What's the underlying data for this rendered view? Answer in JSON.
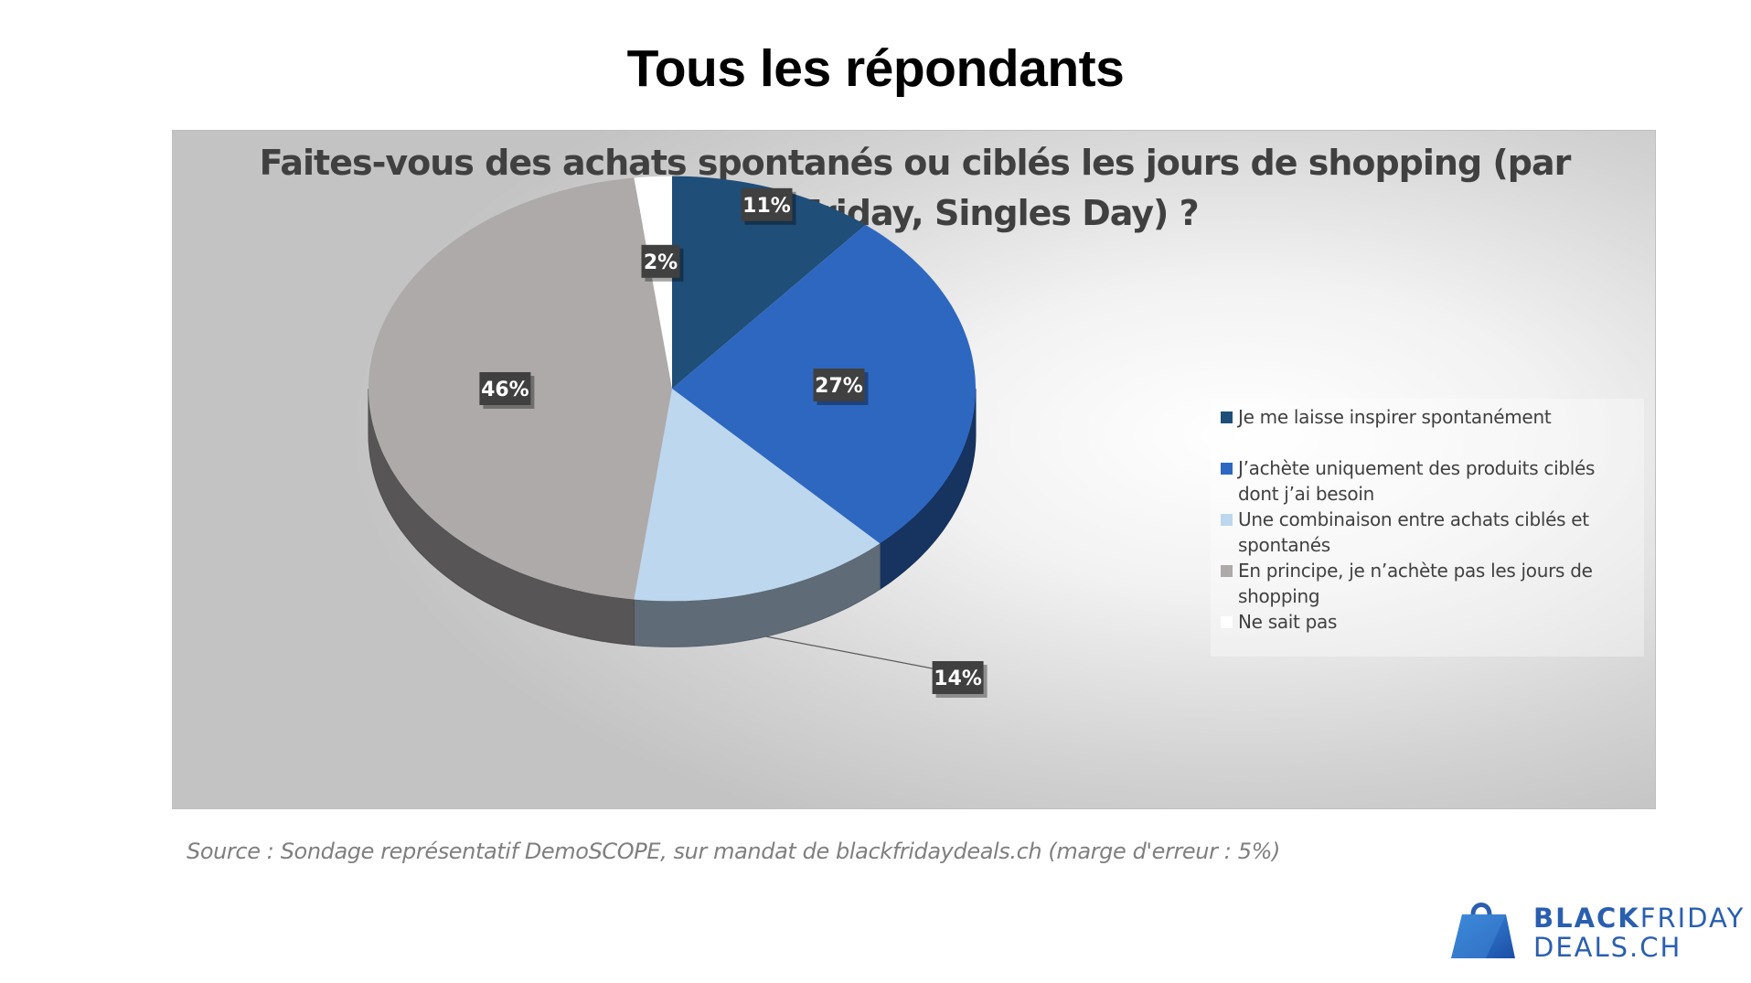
{
  "page": {
    "title": "Tous les répondants"
  },
  "chart_data": {
    "type": "pie",
    "title_lines": [
      "Faites-vous des achats spontanés ou ciblés les jours de shopping (par",
      "ex Black Friday, Singles Day) ?"
    ],
    "slices": [
      {
        "label": "Je me laisse inspirer spontanément",
        "value": 11,
        "display": "11%",
        "color": "#1f4e79"
      },
      {
        "label": "J’achète uniquement des produits ciblés dont j’ai besoin",
        "value": 27,
        "display": "27%",
        "color": "#2e67c0"
      },
      {
        "label": "Une combinaison entre achats ciblés et spontanés",
        "value": 14,
        "display": "14%",
        "color": "#bdd7ee"
      },
      {
        "label": "En principe, je n’achète pas les jours de shopping",
        "value": 46,
        "display": "46%",
        "color": "#aeaaaa"
      },
      {
        "label": "Ne sait pas",
        "value": 2,
        "display": "2%",
        "color": "#ffffff"
      }
    ],
    "legend_position": "right",
    "legend_lines": [
      [
        "Je me laisse inspirer spontanément"
      ],
      [
        "J’achète uniquement des produits ciblés",
        "dont j’ai besoin"
      ],
      [
        "Une combinaison entre achats ciblés et",
        "spontanés"
      ],
      [
        "En principe, je n’achète pas les jours de",
        "shopping"
      ],
      [
        "Ne sait pas"
      ]
    ]
  },
  "footer": {
    "source": "Source : Sondage représentatif DemoSCOPE, sur mandat de blackfridaydeals.ch (marge d'erreur : 5%)"
  },
  "brand": {
    "line1_bold": "BLACK",
    "line1_light": "FRIDAY",
    "line2": "DEALS.CH",
    "color": "#2a5fb0"
  }
}
